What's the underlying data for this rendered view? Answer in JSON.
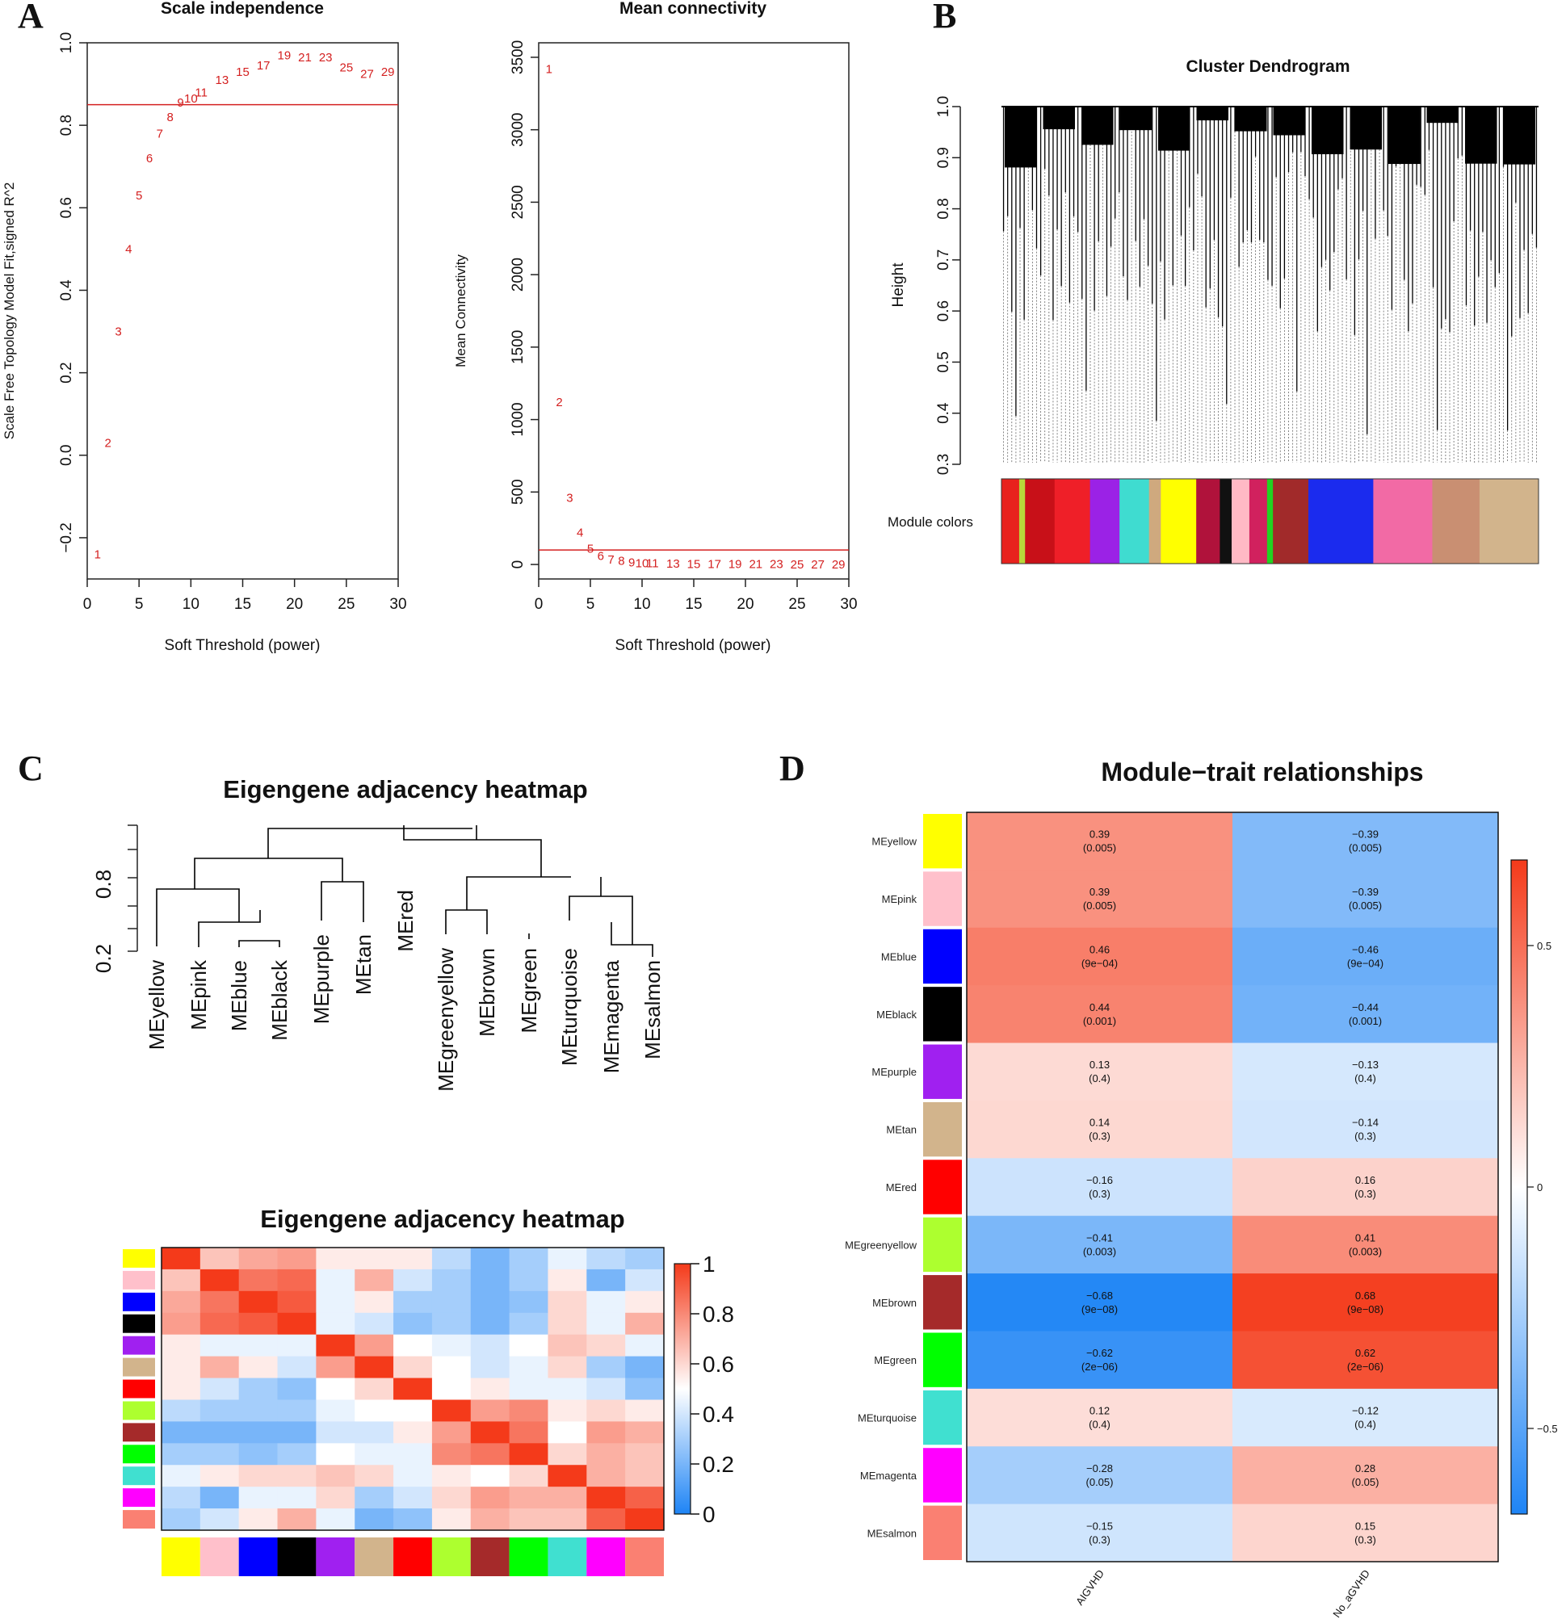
{
  "panels": {
    "a": "A",
    "b": "B",
    "c": "C",
    "d": "D"
  },
  "chart_data": [
    {
      "type": "scatter",
      "title": "Scale independence",
      "xlabel": "Soft Threshold (power)",
      "ylabel": "Scale Free Topology Model Fit,signed R^2",
      "xlim": [
        0,
        30
      ],
      "ylim": [
        -0.3,
        1.0
      ],
      "xticks": [
        "0",
        "5",
        "10",
        "15",
        "20",
        "25",
        "30"
      ],
      "yticks": [
        "-0.2",
        "0.0",
        "0.2",
        "0.4",
        "0.6",
        "0.8",
        "1.0"
      ],
      "hline": 0.85,
      "points": [
        {
          "x": 1,
          "y": -0.24,
          "label": "1"
        },
        {
          "x": 2,
          "y": 0.03,
          "label": "2"
        },
        {
          "x": 3,
          "y": 0.3,
          "label": "3"
        },
        {
          "x": 4,
          "y": 0.5,
          "label": "4"
        },
        {
          "x": 5,
          "y": 0.63,
          "label": "5"
        },
        {
          "x": 6,
          "y": 0.72,
          "label": "6"
        },
        {
          "x": 7,
          "y": 0.78,
          "label": "7"
        },
        {
          "x": 8,
          "y": 0.82,
          "label": "8"
        },
        {
          "x": 9,
          "y": 0.855,
          "label": "9"
        },
        {
          "x": 10,
          "y": 0.865,
          "label": "10"
        },
        {
          "x": 11,
          "y": 0.88,
          "label": "11"
        },
        {
          "x": 13,
          "y": 0.91,
          "label": "13"
        },
        {
          "x": 15,
          "y": 0.93,
          "label": "15"
        },
        {
          "x": 17,
          "y": 0.945,
          "label": "17"
        },
        {
          "x": 19,
          "y": 0.97,
          "label": "19"
        },
        {
          "x": 21,
          "y": 0.965,
          "label": "21"
        },
        {
          "x": 23,
          "y": 0.965,
          "label": "23"
        },
        {
          "x": 25,
          "y": 0.94,
          "label": "25"
        },
        {
          "x": 27,
          "y": 0.925,
          "label": "27"
        },
        {
          "x": 29,
          "y": 0.93,
          "label": "29"
        }
      ]
    },
    {
      "type": "scatter",
      "title": "Mean connectivity",
      "xlabel": "Soft Threshold (power)",
      "ylabel": "Mean Connectivity",
      "xlim": [
        0,
        30
      ],
      "ylim": [
        -100,
        3600
      ],
      "xticks": [
        "0",
        "5",
        "10",
        "15",
        "20",
        "25",
        "30"
      ],
      "yticks": [
        "0",
        "500",
        "1000",
        "1500",
        "2000",
        "2500",
        "3000",
        "3500"
      ],
      "hline": 100,
      "points": [
        {
          "x": 1,
          "y": 3420,
          "label": "1"
        },
        {
          "x": 2,
          "y": 1120,
          "label": "2"
        },
        {
          "x": 3,
          "y": 460,
          "label": "3"
        },
        {
          "x": 4,
          "y": 220,
          "label": "4"
        },
        {
          "x": 5,
          "y": 110,
          "label": "5"
        },
        {
          "x": 6,
          "y": 60,
          "label": "6"
        },
        {
          "x": 7,
          "y": 35,
          "label": "7"
        },
        {
          "x": 8,
          "y": 25,
          "label": "8"
        },
        {
          "x": 9,
          "y": 15,
          "label": "9"
        },
        {
          "x": 10,
          "y": 10,
          "label": "10"
        },
        {
          "x": 11,
          "y": 8,
          "label": "11"
        },
        {
          "x": 13,
          "y": 5,
          "label": "13"
        },
        {
          "x": 15,
          "y": 4,
          "label": "15"
        },
        {
          "x": 17,
          "y": 3,
          "label": "17"
        },
        {
          "x": 19,
          "y": 2,
          "label": "19"
        },
        {
          "x": 21,
          "y": 2,
          "label": "21"
        },
        {
          "x": 23,
          "y": 2,
          "label": "23"
        },
        {
          "x": 25,
          "y": 1,
          "label": "25"
        },
        {
          "x": 27,
          "y": 1,
          "label": "27"
        },
        {
          "x": 29,
          "y": 1,
          "label": "29"
        }
      ]
    },
    {
      "type": "dendrogram",
      "title": "Cluster Dendrogram",
      "ylabel": "Height",
      "ylim": [
        0.3,
        1.0
      ],
      "yticks": [
        "0.3",
        "0.4",
        "0.5",
        "0.6",
        "0.7",
        "0.8",
        "0.9",
        "1.0"
      ],
      "module_colors_label": "Module colors",
      "module_bands": [
        {
          "color": "#e8221d",
          "w": 3
        },
        {
          "color": "#b8d83a",
          "w": 1
        },
        {
          "color": "#c81018",
          "w": 5
        },
        {
          "color": "#ef1f28",
          "w": 6
        },
        {
          "color": "#9b22e6",
          "w": 5
        },
        {
          "color": "#3fdcd0",
          "w": 5
        },
        {
          "color": "#cfa97e",
          "w": 2
        },
        {
          "color": "#ffff00",
          "w": 6
        },
        {
          "color": "#b0123b",
          "w": 4
        },
        {
          "color": "#111111",
          "w": 2
        },
        {
          "color": "#ffb9c5",
          "w": 3
        },
        {
          "color": "#d1215e",
          "w": 3
        },
        {
          "color": "#21d321",
          "w": 1
        },
        {
          "color": "#a12a2a",
          "w": 6
        },
        {
          "color": "#1b2bee",
          "w": 11
        },
        {
          "color": "#f26aa5",
          "w": 10
        },
        {
          "color": "#c98f72",
          "w": 8
        },
        {
          "color": "#d2b48c",
          "w": 10
        }
      ]
    },
    {
      "type": "dendrogram",
      "title": "Eigengene adjacency heatmap",
      "yticks": [
        "0.2",
        "0.8"
      ],
      "leaves": [
        "MEyellow",
        "MEpink",
        "MEblue",
        "MEblack",
        "MEpurple",
        "MEtan",
        "MEred",
        "MEgreenyellow",
        "MEbrown",
        "MEgreen",
        "MEturquoise",
        "MEmagenta",
        "MEsalmon"
      ]
    },
    {
      "type": "heatmap",
      "title": "Eigengene adjacency heatmap",
      "colorbar_ticks": [
        "0",
        "0.2",
        "0.4",
        "0.6",
        "0.8",
        "1"
      ],
      "values": [
        [
          1.0,
          0.65,
          0.72,
          0.75,
          0.55,
          0.55,
          0.55,
          0.35,
          0.2,
          0.3,
          0.45,
          0.35,
          0.3
        ],
        [
          0.65,
          1.0,
          0.85,
          0.88,
          0.45,
          0.7,
          0.4,
          0.3,
          0.2,
          0.3,
          0.55,
          0.2,
          0.4
        ],
        [
          0.72,
          0.85,
          1.0,
          0.92,
          0.45,
          0.55,
          0.3,
          0.3,
          0.2,
          0.25,
          0.6,
          0.45,
          0.55
        ],
        [
          0.75,
          0.88,
          0.92,
          1.0,
          0.45,
          0.4,
          0.25,
          0.3,
          0.2,
          0.3,
          0.6,
          0.45,
          0.7
        ],
        [
          0.55,
          0.45,
          0.45,
          0.45,
          1.0,
          0.75,
          0.5,
          0.45,
          0.4,
          0.5,
          0.65,
          0.6,
          0.45
        ],
        [
          0.55,
          0.7,
          0.55,
          0.4,
          0.75,
          1.0,
          0.6,
          0.5,
          0.4,
          0.45,
          0.6,
          0.3,
          0.2
        ],
        [
          0.55,
          0.4,
          0.3,
          0.25,
          0.5,
          0.6,
          1.0,
          0.5,
          0.55,
          0.45,
          0.45,
          0.4,
          0.25
        ],
        [
          0.35,
          0.3,
          0.3,
          0.3,
          0.45,
          0.5,
          0.5,
          1.0,
          0.75,
          0.8,
          0.55,
          0.6,
          0.55
        ],
        [
          0.2,
          0.2,
          0.2,
          0.2,
          0.4,
          0.4,
          0.55,
          0.75,
          1.0,
          0.85,
          0.5,
          0.75,
          0.7
        ],
        [
          0.3,
          0.3,
          0.25,
          0.3,
          0.5,
          0.45,
          0.45,
          0.8,
          0.85,
          1.0,
          0.6,
          0.7,
          0.65
        ],
        [
          0.45,
          0.55,
          0.6,
          0.6,
          0.65,
          0.6,
          0.45,
          0.55,
          0.5,
          0.6,
          1.0,
          0.7,
          0.65
        ],
        [
          0.35,
          0.2,
          0.45,
          0.45,
          0.6,
          0.3,
          0.4,
          0.6,
          0.75,
          0.7,
          0.7,
          1.0,
          0.9
        ],
        [
          0.3,
          0.4,
          0.55,
          0.7,
          0.45,
          0.2,
          0.25,
          0.55,
          0.7,
          0.65,
          0.65,
          0.9,
          1.0
        ]
      ]
    },
    {
      "type": "table",
      "title": "Module−trait relationships",
      "columns": [
        "AIGVHD",
        "No_aGVHD"
      ],
      "colorbar_ticks": [
        "0.5",
        "0",
        "−0.5"
      ],
      "rows": [
        {
          "name": "MEyellow",
          "color": "#ffff00",
          "v": [
            0.39,
            -0.39
          ],
          "cells": [
            [
              "0.39",
              "(0.005)"
            ],
            [
              "−0.39",
              "(0.005)"
            ]
          ]
        },
        {
          "name": "MEpink",
          "color": "#ffc0cb",
          "v": [
            0.39,
            -0.39
          ],
          "cells": [
            [
              "0.39",
              "(0.005)"
            ],
            [
              "−0.39",
              "(0.005)"
            ]
          ]
        },
        {
          "name": "MEblue",
          "color": "#0000ff",
          "v": [
            0.46,
            -0.46
          ],
          "cells": [
            [
              "0.46",
              "(9e−04)"
            ],
            [
              "−0.46",
              "(9e−04)"
            ]
          ]
        },
        {
          "name": "MEblack",
          "color": "#000000",
          "v": [
            0.44,
            -0.44
          ],
          "cells": [
            [
              "0.44",
              "(0.001)"
            ],
            [
              "−0.44",
              "(0.001)"
            ]
          ]
        },
        {
          "name": "MEpurple",
          "color": "#a020f0",
          "v": [
            0.13,
            -0.13
          ],
          "cells": [
            [
              "0.13",
              "(0.4)"
            ],
            [
              "−0.13",
              "(0.4)"
            ]
          ]
        },
        {
          "name": "MEtan",
          "color": "#d2b48c",
          "v": [
            0.14,
            -0.14
          ],
          "cells": [
            [
              "0.14",
              "(0.3)"
            ],
            [
              "−0.14",
              "(0.3)"
            ]
          ]
        },
        {
          "name": "MEred",
          "color": "#ff0000",
          "v": [
            -0.16,
            0.16
          ],
          "cells": [
            [
              "−0.16",
              "(0.3)"
            ],
            [
              "0.16",
              "(0.3)"
            ]
          ]
        },
        {
          "name": "MEgreenyellow",
          "color": "#adff2f",
          "v": [
            -0.41,
            0.41
          ],
          "cells": [
            [
              "−0.41",
              "(0.003)"
            ],
            [
              "0.41",
              "(0.003)"
            ]
          ]
        },
        {
          "name": "MEbrown",
          "color": "#a52a2a",
          "v": [
            -0.68,
            0.68
          ],
          "cells": [
            [
              "−0.68",
              "(9e−08)"
            ],
            [
              "0.68",
              "(9e−08)"
            ]
          ]
        },
        {
          "name": "MEgreen",
          "color": "#00ff00",
          "v": [
            -0.62,
            0.62
          ],
          "cells": [
            [
              "−0.62",
              "(2e−06)"
            ],
            [
              "0.62",
              "(2e−06)"
            ]
          ]
        },
        {
          "name": "MEturquoise",
          "color": "#40e0d0",
          "v": [
            0.12,
            -0.12
          ],
          "cells": [
            [
              "0.12",
              "(0.4)"
            ],
            [
              "−0.12",
              "(0.4)"
            ]
          ]
        },
        {
          "name": "MEmagenta",
          "color": "#ff00ff",
          "v": [
            -0.28,
            0.28
          ],
          "cells": [
            [
              "−0.28",
              "(0.05)"
            ],
            [
              "0.28",
              "(0.05)"
            ]
          ]
        },
        {
          "name": "MEsalmon",
          "color": "#fa8072",
          "v": [
            -0.15,
            0.15
          ],
          "cells": [
            [
              "−0.15",
              "(0.3)"
            ],
            [
              "0.15",
              "(0.3)"
            ]
          ]
        }
      ]
    }
  ]
}
